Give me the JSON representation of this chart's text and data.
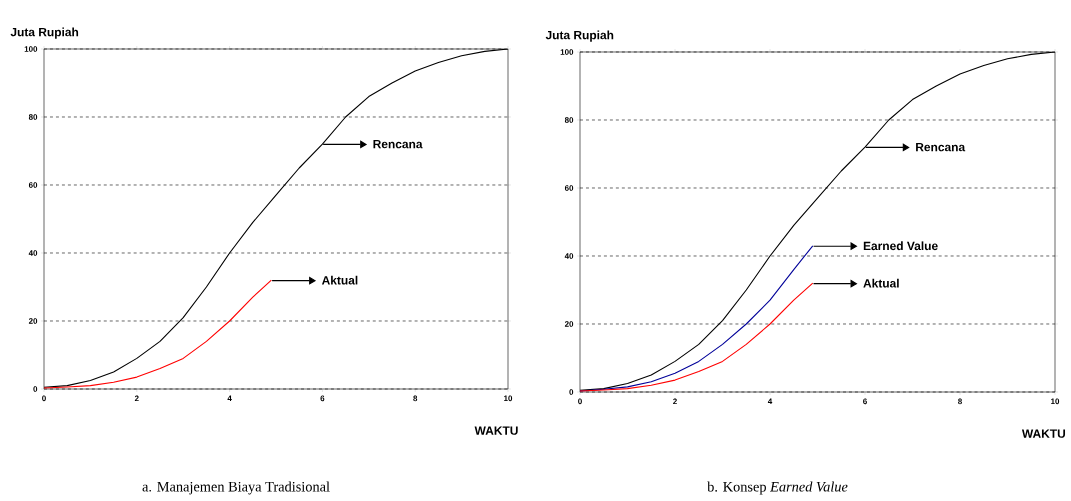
{
  "chart_data": [
    {
      "type": "line",
      "xlabel": "WAKTU",
      "ylabel": "Juta Rupiah",
      "xlim": [
        0,
        10
      ],
      "ylim": [
        0,
        100
      ],
      "xticks": [
        0,
        2,
        4,
        6,
        8,
        10
      ],
      "yticks": [
        0,
        20,
        40,
        60,
        80,
        100
      ],
      "grid": "y",
      "series": [
        {
          "color": "#000000",
          "x": [
            0,
            0.5,
            1,
            1.5,
            2,
            2.5,
            3,
            3.5,
            4,
            4.5,
            5,
            5.5,
            6,
            6.5,
            7,
            7.5,
            8,
            8.5,
            9,
            9.5,
            10
          ],
          "values": [
            0.5,
            1,
            2.5,
            5,
            9,
            14,
            21,
            30,
            40,
            49,
            57,
            65,
            72,
            80,
            86,
            90,
            93.5,
            96,
            98,
            99.3,
            100
          ]
        },
        {
          "color": "#ff0000",
          "x": [
            0,
            0.5,
            1,
            1.5,
            2,
            2.5,
            3,
            3.5,
            4,
            4.5,
            4.9
          ],
          "values": [
            0.3,
            0.6,
            1,
            2,
            3.5,
            6,
            9,
            14,
            20,
            27,
            32
          ]
        }
      ],
      "annotations": [
        "Rencana",
        "Aktual",
        "a. Manajemen Biaya Tradisional"
      ]
    },
    {
      "type": "line",
      "xlabel": "WAKTU",
      "ylabel": "Juta Rupiah",
      "xlim": [
        0,
        10
      ],
      "ylim": [
        0,
        100
      ],
      "xticks": [
        0,
        2,
        4,
        6,
        8,
        10
      ],
      "yticks": [
        0,
        20,
        40,
        60,
        80,
        100
      ],
      "grid": "y",
      "series": [
        {
          "color": "#000000",
          "x": [
            0,
            0.5,
            1,
            1.5,
            2,
            2.5,
            3,
            3.5,
            4,
            4.5,
            5,
            5.5,
            6,
            6.5,
            7,
            7.5,
            8,
            8.5,
            9,
            9.5,
            10
          ],
          "values": [
            0.5,
            1,
            2.5,
            5,
            9,
            14,
            21,
            30,
            40,
            49,
            57,
            65,
            72,
            80,
            86,
            90,
            93.5,
            96,
            98,
            99.3,
            100
          ]
        },
        {
          "color": "#000099",
          "x": [
            0,
            0.5,
            1,
            1.5,
            2,
            2.5,
            3,
            3.5,
            4,
            4.5,
            4.9
          ],
          "values": [
            0.3,
            0.8,
            1.5,
            3,
            5.5,
            9,
            14,
            20,
            27,
            36,
            43
          ]
        },
        {
          "color": "#ff0000",
          "x": [
            0,
            0.5,
            1,
            1.5,
            2,
            2.5,
            3,
            3.5,
            4,
            4.5,
            4.9
          ],
          "values": [
            0.3,
            0.6,
            1,
            2,
            3.5,
            6,
            9,
            14,
            20,
            27,
            32
          ]
        }
      ],
      "annotations": [
        "Rencana",
        "Earned Value",
        "Aktual",
        "b. Konsep *Earned Value*"
      ]
    }
  ]
}
